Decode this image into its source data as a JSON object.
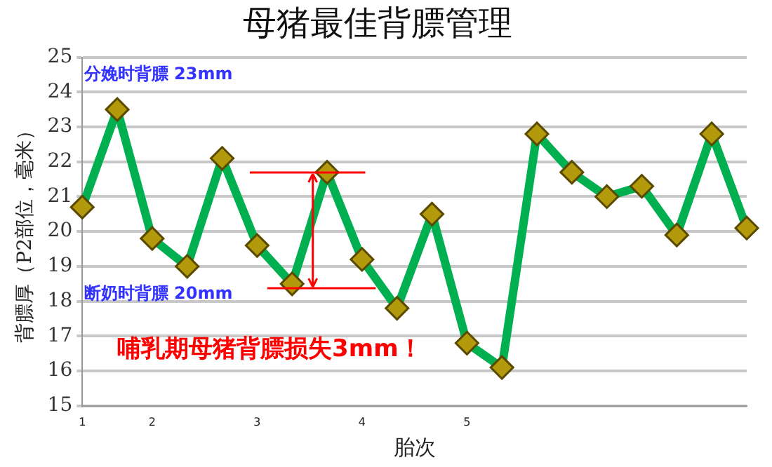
{
  "chart_data": {
    "type": "line",
    "title": "母猪最佳背膘管理",
    "xlabel": "胎次",
    "ylabel": "背膘厚（P2部位，毫米）",
    "categories": [
      "1",
      null,
      "2",
      null,
      null,
      "3",
      null,
      null,
      "4",
      null,
      null,
      "5",
      null,
      null,
      null,
      null,
      null,
      null,
      null,
      null
    ],
    "series": [
      {
        "color": "#00b050",
        "values": [
          20.7,
          23.5,
          19.8,
          19.0,
          22.1,
          19.6,
          18.5,
          21.7,
          19.2,
          17.8,
          20.5,
          16.8,
          16.1,
          22.8,
          21.7,
          21.0,
          21.3,
          19.9,
          22.8,
          20.1
        ]
      }
    ],
    "ylim": [
      15,
      25
    ],
    "yticks": [
      15,
      16,
      17,
      18,
      19,
      20,
      21,
      22,
      23,
      24,
      25
    ],
    "grid": "y",
    "legend": false,
    "marker": "diamond",
    "line_style": "solid",
    "annotations": [
      "分娩时背膘 23mm",
      "断奶时背膘 20mm",
      "哺乳期母猪背膘损失3mm！"
    ]
  }
}
